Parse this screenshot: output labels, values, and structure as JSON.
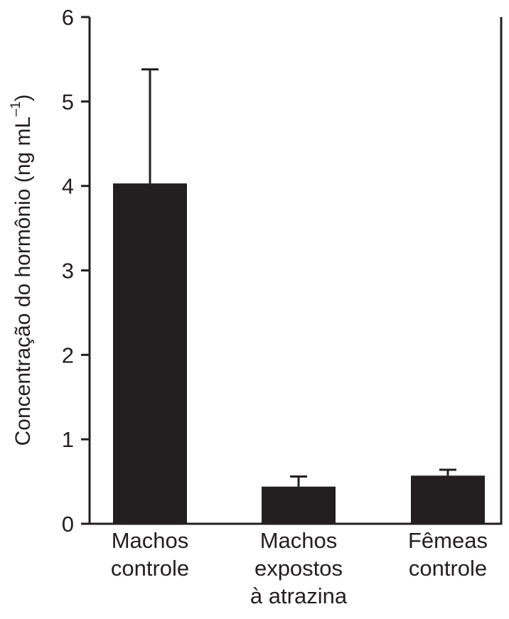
{
  "chart_data": {
    "type": "bar",
    "categories": [
      [
        "Machos",
        "controle"
      ],
      [
        "Machos",
        "expostos",
        "à atrazina"
      ],
      [
        "Fêmeas",
        "controle"
      ]
    ],
    "values": [
      4.03,
      0.44,
      0.57
    ],
    "errors": [
      1.35,
      0.12,
      0.07
    ],
    "title": "",
    "xlabel": "",
    "ylabel": "Concentração do hormônio (ng mL",
    "ylabel_superscript": "–1",
    "ylabel_suffix": ")",
    "ylim": [
      0,
      6
    ],
    "yticks": [
      "0",
      "1",
      "2",
      "3",
      "4",
      "5",
      "6"
    ],
    "grid": false,
    "legend": "none",
    "bar_color": "#231f20",
    "axis_color": "#231f20"
  }
}
